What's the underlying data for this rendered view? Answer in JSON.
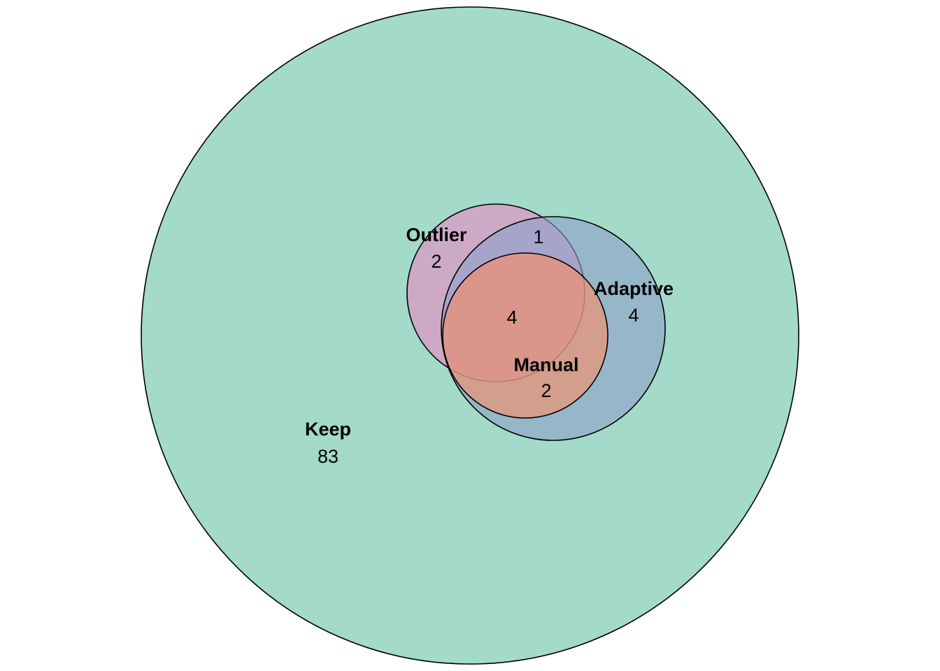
{
  "diagram": {
    "type": "euler",
    "sets": [
      {
        "id": "keep",
        "name": "Keep",
        "color": "#66C2A5",
        "opacity": 0.6
      },
      {
        "id": "outlier",
        "name": "Outlier",
        "color": "#E78AC3",
        "opacity": 0.6
      },
      {
        "id": "adaptive",
        "name": "Adaptive",
        "color": "#8DA0CB",
        "opacity": 0.6
      },
      {
        "id": "manual",
        "name": "Manual",
        "color": "#FC8D62",
        "opacity": 0.6
      }
    ],
    "regions": [
      {
        "sets": [
          "keep"
        ],
        "count": "83"
      },
      {
        "sets": [
          "outlier"
        ],
        "count": "2"
      },
      {
        "sets": [
          "adaptive"
        ],
        "count": "4"
      },
      {
        "sets": [
          "manual"
        ],
        "count": "2"
      },
      {
        "sets": [
          "outlier",
          "adaptive"
        ],
        "count": "1"
      },
      {
        "sets": [
          "outlier",
          "adaptive",
          "manual"
        ],
        "count": "4"
      }
    ]
  }
}
